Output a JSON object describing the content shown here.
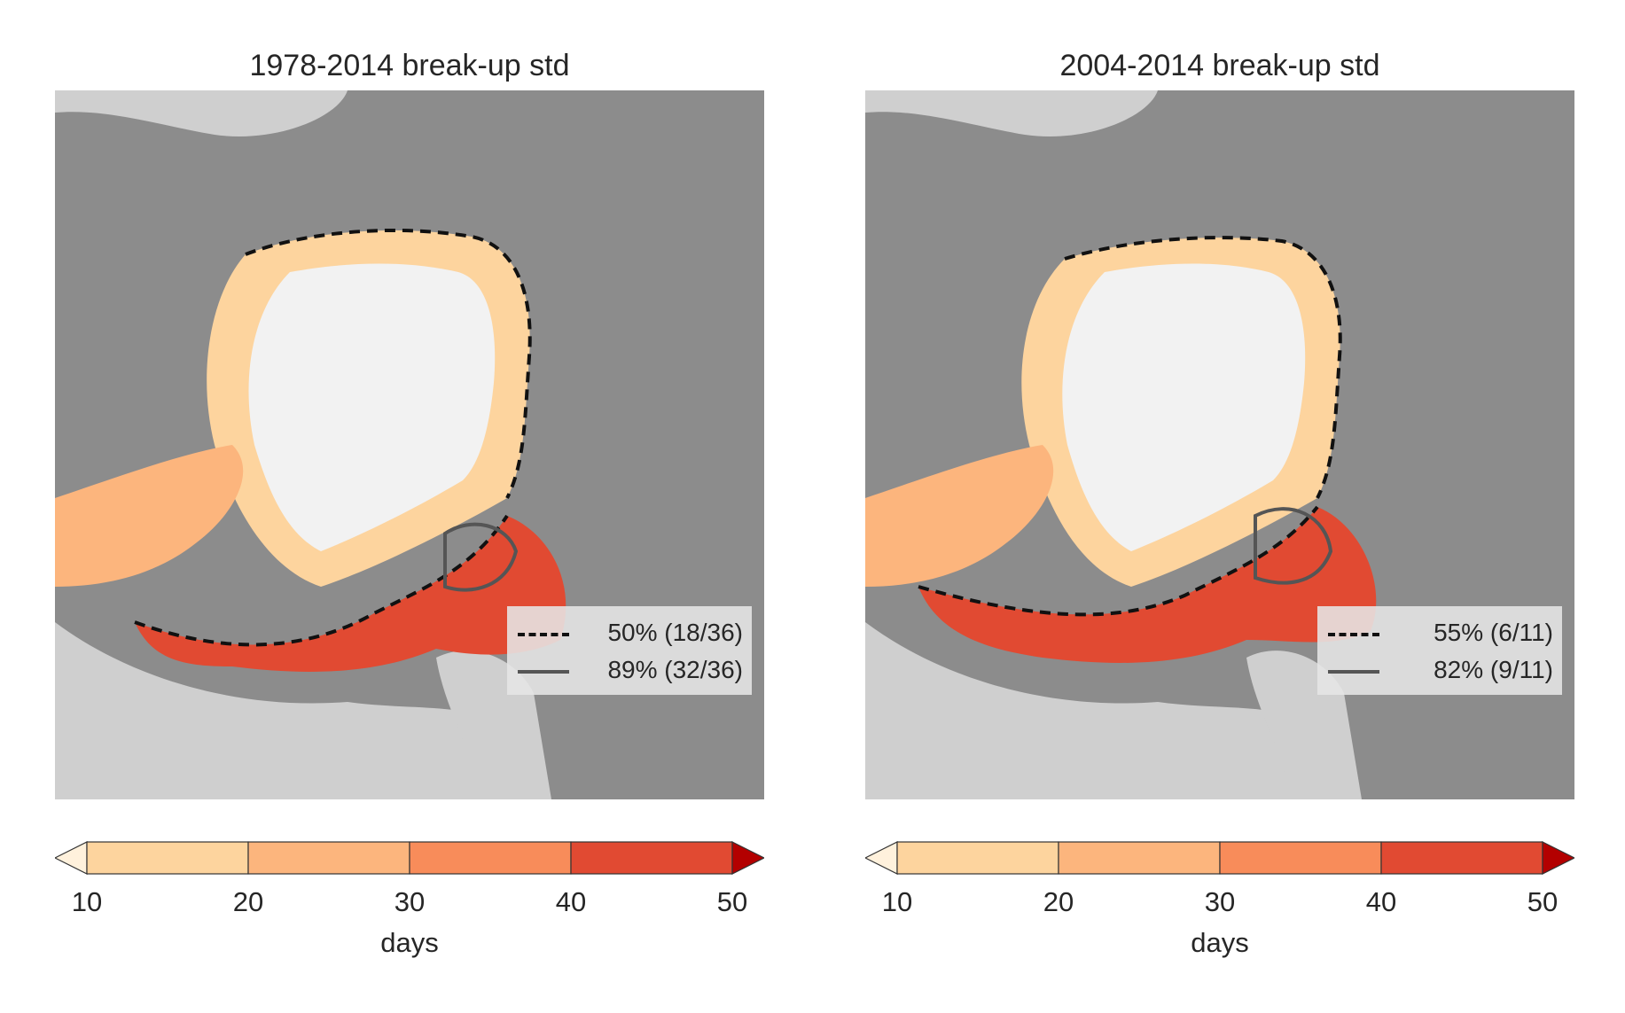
{
  "panels": [
    {
      "title": "1978-2014 break-up std",
      "legend": [
        {
          "style": "dashed",
          "label": "50% (18/36)"
        },
        {
          "style": "solid",
          "label": "89% (32/36)"
        }
      ]
    },
    {
      "title": "2004-2014 break-up std",
      "legend": [
        {
          "style": "dashed",
          "label": "55% (6/11)"
        },
        {
          "style": "solid",
          "label": "82% (9/11)"
        }
      ]
    }
  ],
  "colorbar": {
    "ticks": [
      "10",
      "20",
      "30",
      "40",
      "50"
    ],
    "label": "days",
    "colors": {
      "under": "#fff1dc",
      "bin_10_20": "#fdd49e",
      "bin_20_30": "#fcb57d",
      "bin_30_40": "#f88c5a",
      "bin_40_50": "#e14a32",
      "over": "#b30000"
    }
  },
  "map_colors": {
    "land": "#8c8c8c",
    "open_water": "#cfcfcf",
    "perennial_ice": "#f2f2f2"
  }
}
